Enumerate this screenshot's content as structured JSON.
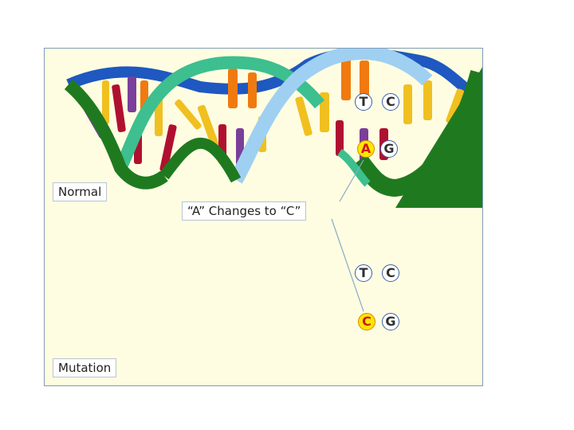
{
  "labels": {
    "normal": "Normal",
    "mutation": "Mutation",
    "change": "“A” Changes to “C”"
  },
  "normal_pairs": [
    [
      "T",
      "C"
    ],
    [
      "A",
      "G"
    ]
  ],
  "mutation_pairs": [
    [
      "T",
      "C"
    ],
    [
      "C",
      "G"
    ]
  ],
  "highlight": {
    "normal": "A",
    "mutation": "C"
  },
  "colors": {
    "panel_bg": "#fffde1",
    "panel_border": "#7f9db9",
    "backbone_green": "#1f7a1f",
    "backbone_teal": "#3dbf8f",
    "backbone_lightblue": "#9fd0f2",
    "backbone_blue": "#1e58c0",
    "rung_yellow": "#f0c020",
    "rung_orange": "#f07a10",
    "rung_red": "#b01030",
    "rung_purple": "#7a3f9a",
    "highlight": "#ffe600"
  }
}
